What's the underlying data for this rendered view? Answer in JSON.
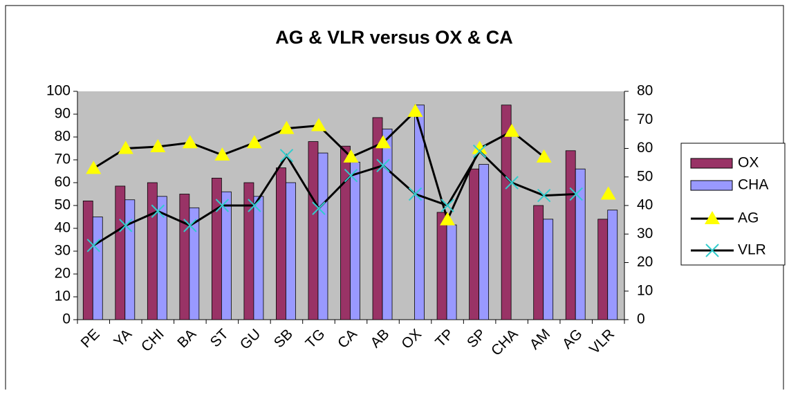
{
  "chart_data": {
    "type": "bar-line",
    "title": "AG & VLR versus OX & CA",
    "categories": [
      "PE",
      "YA",
      "CHI",
      "BA",
      "ST",
      "GU",
      "SB",
      "TG",
      "CA",
      "AB",
      "OX",
      "TP",
      "SP",
      "CHA",
      "AM",
      "AG",
      "VLR"
    ],
    "series": [
      {
        "name": "OX",
        "type": "bar",
        "color": "#993366",
        "values": [
          52,
          58.5,
          60,
          55,
          62,
          60,
          66.5,
          78,
          76,
          88.5,
          null,
          47,
          66,
          94,
          50,
          74,
          44
        ]
      },
      {
        "name": "CHA",
        "type": "bar",
        "color": "#9999ff",
        "values": [
          45,
          52.5,
          54,
          49,
          56,
          54,
          60,
          73,
          69,
          83.5,
          94,
          41.5,
          68,
          null,
          44,
          66,
          48
        ]
      },
      {
        "name": "AG",
        "type": "line",
        "axis": "y2",
        "marker": "triangle",
        "color": "#ffff00",
        "values": [
          53,
          60,
          60.6,
          62,
          57.7,
          62,
          67,
          68,
          57,
          62,
          73,
          35,
          60,
          66,
          57,
          null,
          44
        ]
      },
      {
        "name": "VLR",
        "type": "line",
        "axis": "y2",
        "marker": "x",
        "color": "#33cccc",
        "values": [
          26,
          33,
          38,
          33,
          40,
          40,
          57.5,
          39,
          50.5,
          54,
          44,
          40,
          59,
          48,
          43.5,
          44,
          null
        ]
      }
    ],
    "ylim": [
      0,
      100
    ],
    "yticks": [
      0,
      10,
      20,
      30,
      40,
      50,
      60,
      70,
      80,
      90,
      100
    ],
    "y2lim": [
      0,
      80
    ],
    "y2ticks": [
      0,
      10,
      20,
      30,
      40,
      50,
      60,
      70,
      80
    ],
    "legend": "right"
  }
}
